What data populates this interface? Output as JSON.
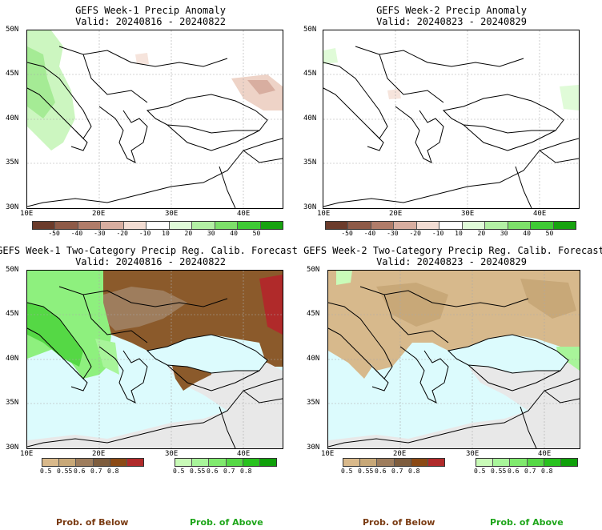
{
  "panels": [
    {
      "title": "GEFS Week-1 Precip Anomaly",
      "valid": "Valid: 20240816 - 20240822",
      "type": "anomaly",
      "lat_labels": [
        "50N",
        "45N",
        "40N",
        "35N",
        "30N"
      ],
      "lon_labels": [
        "10E",
        "20E",
        "30E",
        "40E"
      ]
    },
    {
      "title": "GEFS Week-2 Precip Anomaly",
      "valid": "Valid: 20240823 - 20240829",
      "type": "anomaly",
      "lat_labels": [
        "50N",
        "45N",
        "40N",
        "35N",
        "30N"
      ],
      "lon_labels": [
        "10E",
        "20E",
        "30E",
        "40E"
      ]
    },
    {
      "title": "GEFS Week-1 Two-Category Precip Reg. Calib. Forecast",
      "valid": "Valid: 20240816 - 20240822",
      "type": "probability",
      "lat_labels": [
        "50N",
        "45N",
        "40N",
        "35N",
        "30N"
      ],
      "lon_labels": [
        "10E",
        "20E",
        "30E",
        "40E"
      ]
    },
    {
      "title": "GEFS Week-2 Two-Category Precip Reg. Calib. Forecast",
      "valid": "Valid: 20240823 - 20240829",
      "type": "probability",
      "lat_labels": [
        "50N",
        "45N",
        "40N",
        "35N",
        "30N"
      ],
      "lon_labels": [
        "10E",
        "20E",
        "30E",
        "40E"
      ]
    }
  ],
  "anomaly_colorbar": {
    "labels": [
      "-50",
      "-40",
      "-30",
      "-20",
      "-10",
      "10",
      "20",
      "30",
      "40",
      "50"
    ],
    "colors": [
      "#6b3b2b",
      "#8e5a47",
      "#b07c69",
      "#d8aea0",
      "#f3ddd3",
      "#ffffff",
      "#e0fbd8",
      "#b3f0a4",
      "#7de06a",
      "#3fca35",
      "#17a30f"
    ]
  },
  "below_colorbar": {
    "labels": [
      "0.5",
      "0.55",
      "0.6",
      "0.7",
      "0.8"
    ],
    "colors": [
      "#d9b98b",
      "#c8a878",
      "#9e7d5d",
      "#7e5d3e",
      "#8b4a16",
      "#b02a2a"
    ]
  },
  "above_colorbar": {
    "labels": [
      "0.5",
      "0.55",
      "0.6",
      "0.7",
      "0.8"
    ],
    "colors": [
      "#c9fbb8",
      "#a8f59a",
      "#80ea6e",
      "#55d845",
      "#28c21e",
      "#0fa00a"
    ]
  },
  "legend": {
    "below": "Prob. of Below",
    "above": "Prob. of Above",
    "below_color": "#7a3b12",
    "above_color": "#1ea61a"
  },
  "colors": {
    "sea": "#dcfbfd",
    "no_skill": "#e8e8e8",
    "wet": "#8ef07e",
    "dry": "#8b5a2b",
    "tan": "#d7b98c"
  }
}
